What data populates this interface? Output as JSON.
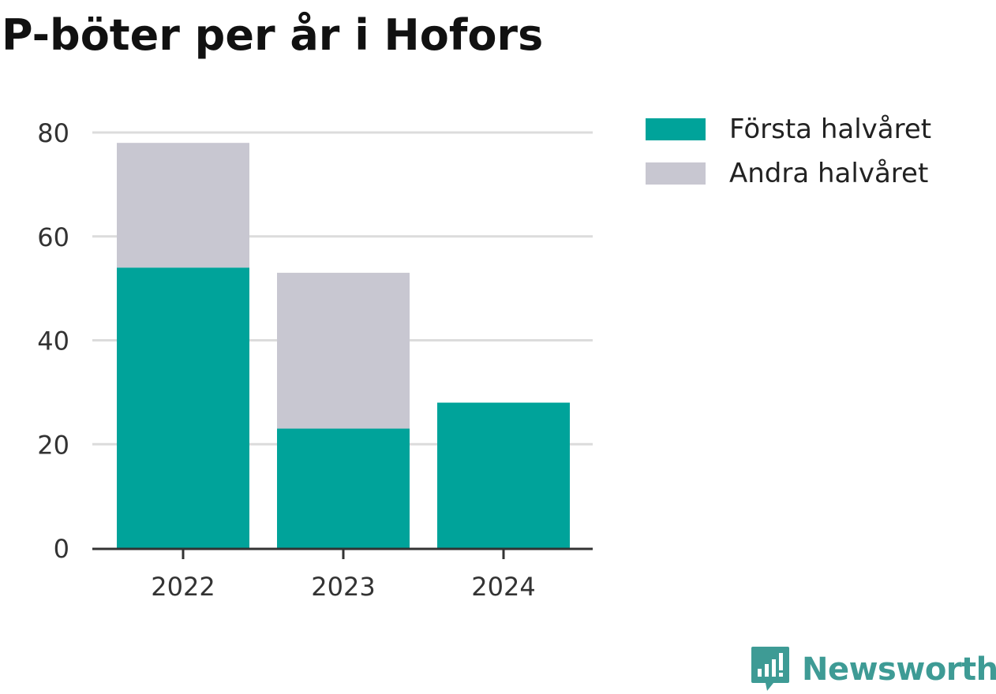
{
  "title": "P-böter per år i Hofors",
  "brand": {
    "name": "Newsworthy",
    "icon": "newsworthy-logo-icon",
    "color": "#3e9b95"
  },
  "chart_data": {
    "type": "bar",
    "stacked": true,
    "categories": [
      "2022",
      "2023",
      "2024"
    ],
    "series": [
      {
        "name": "Första halvåret",
        "values": [
          54,
          23,
          28
        ],
        "color": "#00a39a"
      },
      {
        "name": "Andra halvåret",
        "values": [
          24,
          30,
          0
        ],
        "color": "#c8c7d1"
      }
    ],
    "ylim": [
      0,
      80
    ],
    "yticks": [
      "0",
      "20",
      "40",
      "60",
      "80"
    ],
    "grid": true,
    "legend": "top-right"
  }
}
